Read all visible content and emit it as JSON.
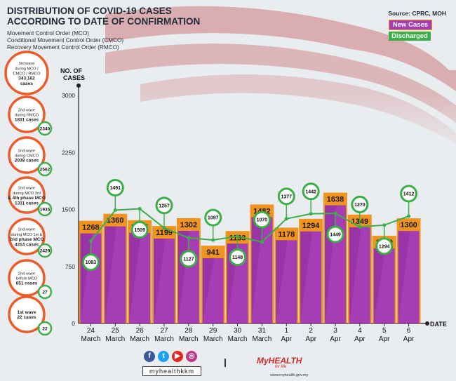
{
  "header": {
    "title_line1": "DISTRIBUTION OF COVID-19 CASES",
    "title_line2": "ACCORDING TO DATE OF CONFIRMATION",
    "sub1": "Movement Control Order (MCO)",
    "sub2": "Conditional Movement Control Order (CMCO)",
    "sub3": "Recovery Movement Control Order (RMCO)",
    "source": "Source: CPRC, MOH"
  },
  "legend": {
    "new_cases": "New Cases",
    "discharged": "Discharged"
  },
  "colors": {
    "new": "#a73db4",
    "new_dark": "#8a2c98",
    "orange": "#f0941f",
    "green": "#3cae49",
    "axis": "#222222"
  },
  "side_circles": [
    {
      "lines": [
        "3rd wave",
        "during MCO /",
        "CMCO / RMCO",
        "343,162",
        "cases"
      ],
      "badge": ""
    },
    {
      "lines": [
        "2nd wave",
        "during RMCO",
        "1831 cases"
      ],
      "badge": "2340"
    },
    {
      "lines": [
        "2nd wave",
        "during CMCO",
        "2038 cases"
      ],
      "badge": "2562"
    },
    {
      "lines": [
        "2nd wave",
        "during MCO 3rd",
        "& 4th phase MCO",
        "1311 cases"
      ],
      "badge": "1935"
    },
    {
      "lines": [
        "2nd wave",
        "during MCO 1st &",
        "2nd phase MCO",
        "4314 cases"
      ],
      "badge": "2429"
    },
    {
      "lines": [
        "2nd wave",
        "before MCO",
        "651 cases"
      ],
      "badge": "27"
    },
    {
      "lines": [
        "1st wave",
        "22 cases"
      ],
      "badge": "22"
    }
  ],
  "chart_data": {
    "type": "bar",
    "title": "DISTRIBUTION OF COVID-19 CASES ACCORDING TO DATE OF CONFIRMATION",
    "ylabel": "NO. OF CASES",
    "xlabel": "DATE",
    "ylim": [
      0,
      3000
    ],
    "yticks": [
      0,
      750,
      1500,
      2250,
      3000
    ],
    "categories": [
      [
        "24",
        "March"
      ],
      [
        "25",
        "March"
      ],
      [
        "26",
        "March"
      ],
      [
        "27",
        "March"
      ],
      [
        "28",
        "March"
      ],
      [
        "29",
        "March"
      ],
      [
        "30",
        "March"
      ],
      [
        "31",
        "March"
      ],
      [
        "1",
        "Apr"
      ],
      [
        "2",
        "Apr"
      ],
      [
        "3",
        "Apr"
      ],
      [
        "4",
        "Apr"
      ],
      [
        "5",
        "Apr"
      ],
      [
        "6",
        "Apr"
      ]
    ],
    "series": [
      {
        "name": "New Cases",
        "values": [
          1268,
          1360,
          1275,
          1199,
          1302,
          941,
          1133,
          1482,
          1178,
          1294,
          1638,
          1349,
          1070,
          1300
        ]
      },
      {
        "name": "Discharged",
        "values": [
          1083,
          1491,
          1509,
          1257,
          1127,
          1097,
          1148,
          1070,
          1377,
          1442,
          1449,
          1270,
          1294,
          1412
        ]
      }
    ]
  },
  "footer": {
    "handle": "myhealthkkm",
    "logo": "MyHEALTH",
    "logo_sub": "for life",
    "url": "www.myhealth.gov.my"
  }
}
